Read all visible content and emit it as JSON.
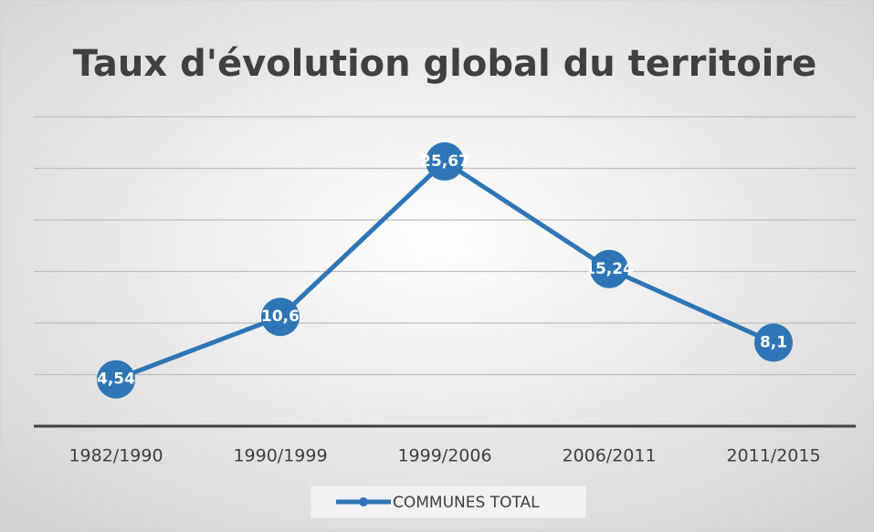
{
  "chart_data": {
    "type": "line",
    "title": "Taux d'évolution global du territoire",
    "categories": [
      "1982/1990",
      "1990/1999",
      "1999/2006",
      "2006/2011",
      "2011/2015"
    ],
    "series": [
      {
        "name": "COMMUNES TOTAL",
        "color": "#2e75b6",
        "values": [
          4.54,
          10.6,
          25.67,
          15.24,
          8.1
        ],
        "value_labels": [
          "4,54",
          "10,6",
          "25,67",
          "15,24",
          "8,1"
        ]
      }
    ],
    "ylim": [
      0,
      30
    ],
    "yticks": [
      0,
      5,
      10,
      15,
      20,
      25,
      30
    ],
    "grid": true,
    "legend": "bottom"
  }
}
